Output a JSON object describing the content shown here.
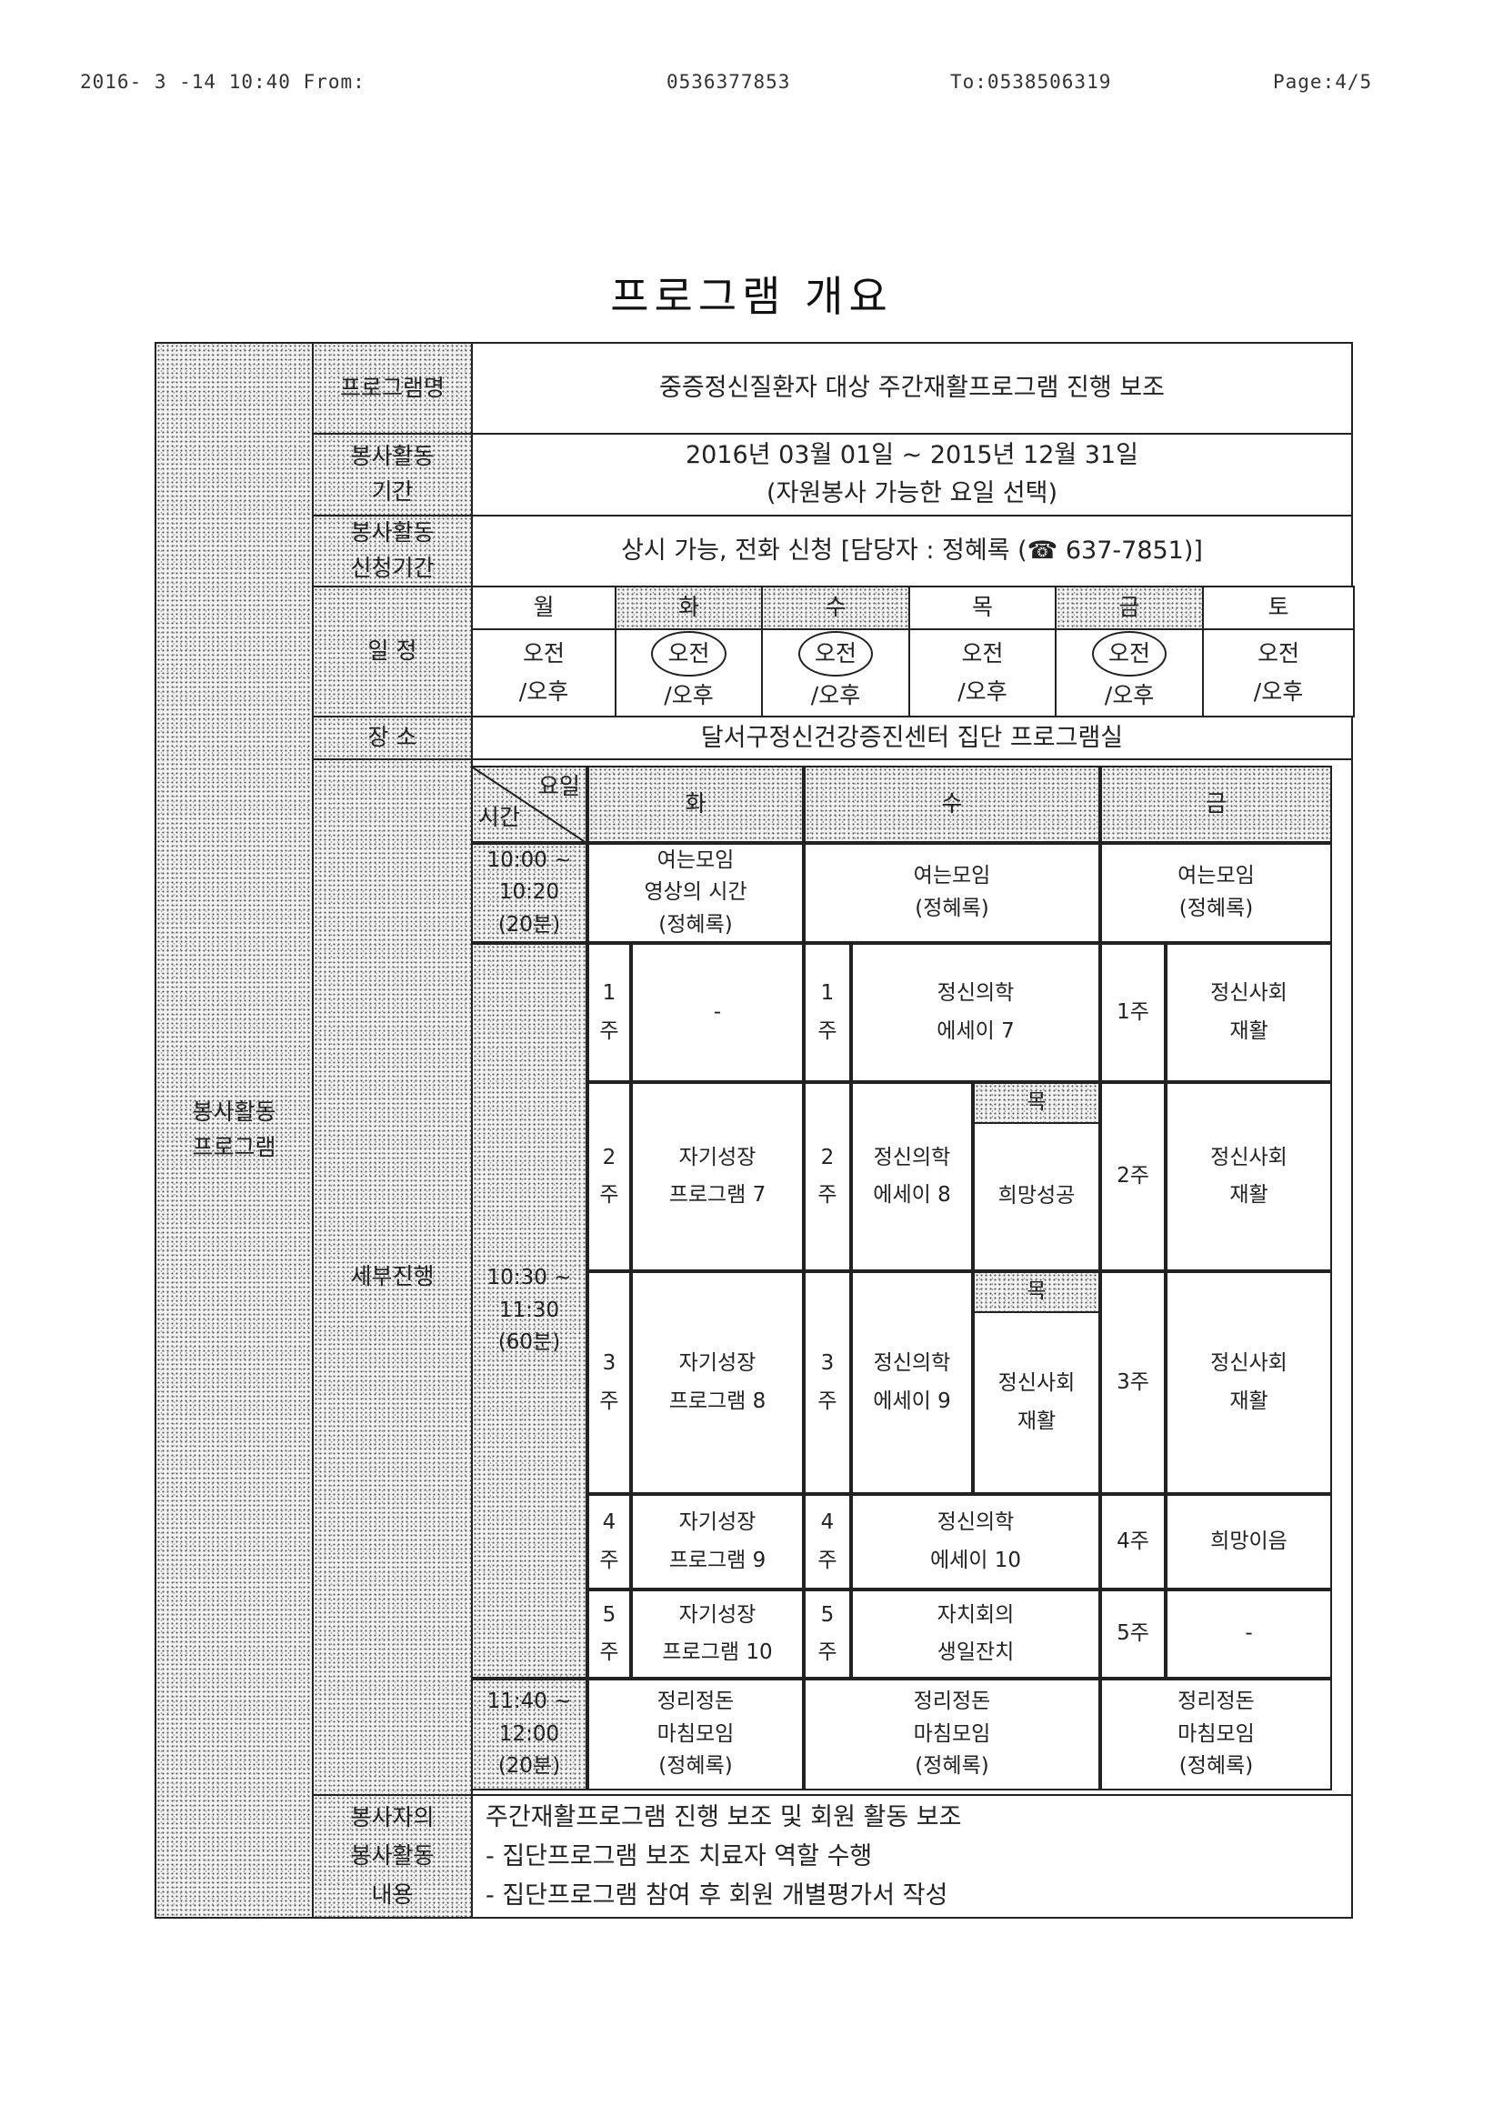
{
  "fax_header": {
    "datetime": "2016- 3 -14 10:40 From:",
    "from_number": "0536377853",
    "to": "To:0538506319",
    "page": "Page:4/5"
  },
  "title": "프로그램 개요",
  "side_label": [
    "봉사활동",
    "프로그램"
  ],
  "rows": {
    "program_name": {
      "label": "프로그램명",
      "value": "중증정신질환자 대상 주간재활프로그램 진행 보조"
    },
    "period": {
      "label": [
        "봉사활동",
        "기간"
      ],
      "value": [
        "2016년 03월 01일 ~ 2015년 12월 31일",
        "(자원봉사 가능한 요일 선택)"
      ]
    },
    "application": {
      "label": [
        "봉사활동",
        "신청기간"
      ],
      "value": "상시 가능, 전화 신청 [담당자 : 정혜록 (☎ 637-7851)]"
    },
    "schedule": {
      "label": "일 정",
      "days": [
        {
          "day": "월",
          "am": "오전",
          "pm": "/오후",
          "selected": false
        },
        {
          "day": "화",
          "am": "오전",
          "pm": "/오후",
          "selected": true
        },
        {
          "day": "수",
          "am": "오전",
          "pm": "/오후",
          "selected": true
        },
        {
          "day": "목",
          "am": "오전",
          "pm": "/오후",
          "selected": false
        },
        {
          "day": "금",
          "am": "오전",
          "pm": "/오후",
          "selected": true
        },
        {
          "day": "토",
          "am": "오전",
          "pm": "/오후",
          "selected": false
        }
      ]
    },
    "place": {
      "label": "장 소",
      "value": "달서구정신건강증진센터 집단 프로그램실"
    },
    "detail": {
      "label": "세부진행"
    },
    "content": {
      "label": [
        "봉사자의",
        "봉사활동",
        "내용"
      ],
      "lines": [
        "주간재활프로그램 진행 보조 및 회원 활동 보조",
        "- 집단프로그램 보조 치료자 역할 수행",
        "- 집단프로그램 참여 후 회원 개별평가서 작성"
      ]
    }
  },
  "timetable": {
    "corner": {
      "day": "요일",
      "time": "시간"
    },
    "days": [
      "화",
      "수",
      "금"
    ],
    "thursday": "목",
    "times": {
      "opening": [
        "10:00 ~",
        "10:20",
        "(20분)"
      ],
      "main": [
        "10:30 ~",
        "11:30",
        "(60분)"
      ],
      "closing": [
        "11:40 ~",
        "12:00",
        "(20분)"
      ]
    },
    "opening": {
      "tue": [
        "여는모임",
        "영상의 시간",
        "(정혜록)"
      ],
      "wed": [
        "여는모임",
        "(정혜록)"
      ],
      "fri": [
        "여는모임",
        "(정혜록)"
      ]
    },
    "weeks": [
      {
        "tue_num": [
          "1",
          "주"
        ],
        "tue": [
          "-"
        ],
        "wed_num": [
          "1",
          "주"
        ],
        "wed": [
          "정신의학",
          "에세이 7"
        ],
        "fri_num": "1주",
        "fri": [
          "정신사회",
          "재활"
        ]
      },
      {
        "tue_num": [
          "2",
          "주"
        ],
        "tue": [
          "자기성장",
          "프로그램 7"
        ],
        "wed_num": [
          "2",
          "주"
        ],
        "wed": [
          "정신의학",
          "에세이 8"
        ],
        "thu": [
          "희망성공"
        ],
        "fri_num": "2주",
        "fri": [
          "정신사회",
          "재활"
        ]
      },
      {
        "tue_num": [
          "3",
          "주"
        ],
        "tue": [
          "자기성장",
          "프로그램 8"
        ],
        "wed_num": [
          "3",
          "주"
        ],
        "wed": [
          "정신의학",
          "에세이 9"
        ],
        "thu": [
          "정신사회",
          "재활"
        ],
        "fri_num": "3주",
        "fri": [
          "정신사회",
          "재활"
        ]
      },
      {
        "tue_num": [
          "4",
          "주"
        ],
        "tue": [
          "자기성장",
          "프로그램 9"
        ],
        "wed_num": [
          "4",
          "주"
        ],
        "wed": [
          "정신의학",
          "에세이 10"
        ],
        "fri_num": "4주",
        "fri": [
          "희망이음"
        ]
      },
      {
        "tue_num": [
          "5",
          "주"
        ],
        "tue": [
          "자기성장",
          "프로그램 10"
        ],
        "wed_num": [
          "5",
          "주"
        ],
        "wed": [
          "자치회의",
          "생일잔치"
        ],
        "fri_num": "5주",
        "fri": [
          "-"
        ]
      }
    ],
    "closing": {
      "tue": [
        "정리정돈",
        "마침모임",
        "(정혜록)"
      ],
      "wed": [
        "정리정돈",
        "마침모임",
        "(정혜록)"
      ],
      "fri": [
        "정리정돈",
        "마침모임",
        "(정혜록)"
      ]
    }
  }
}
